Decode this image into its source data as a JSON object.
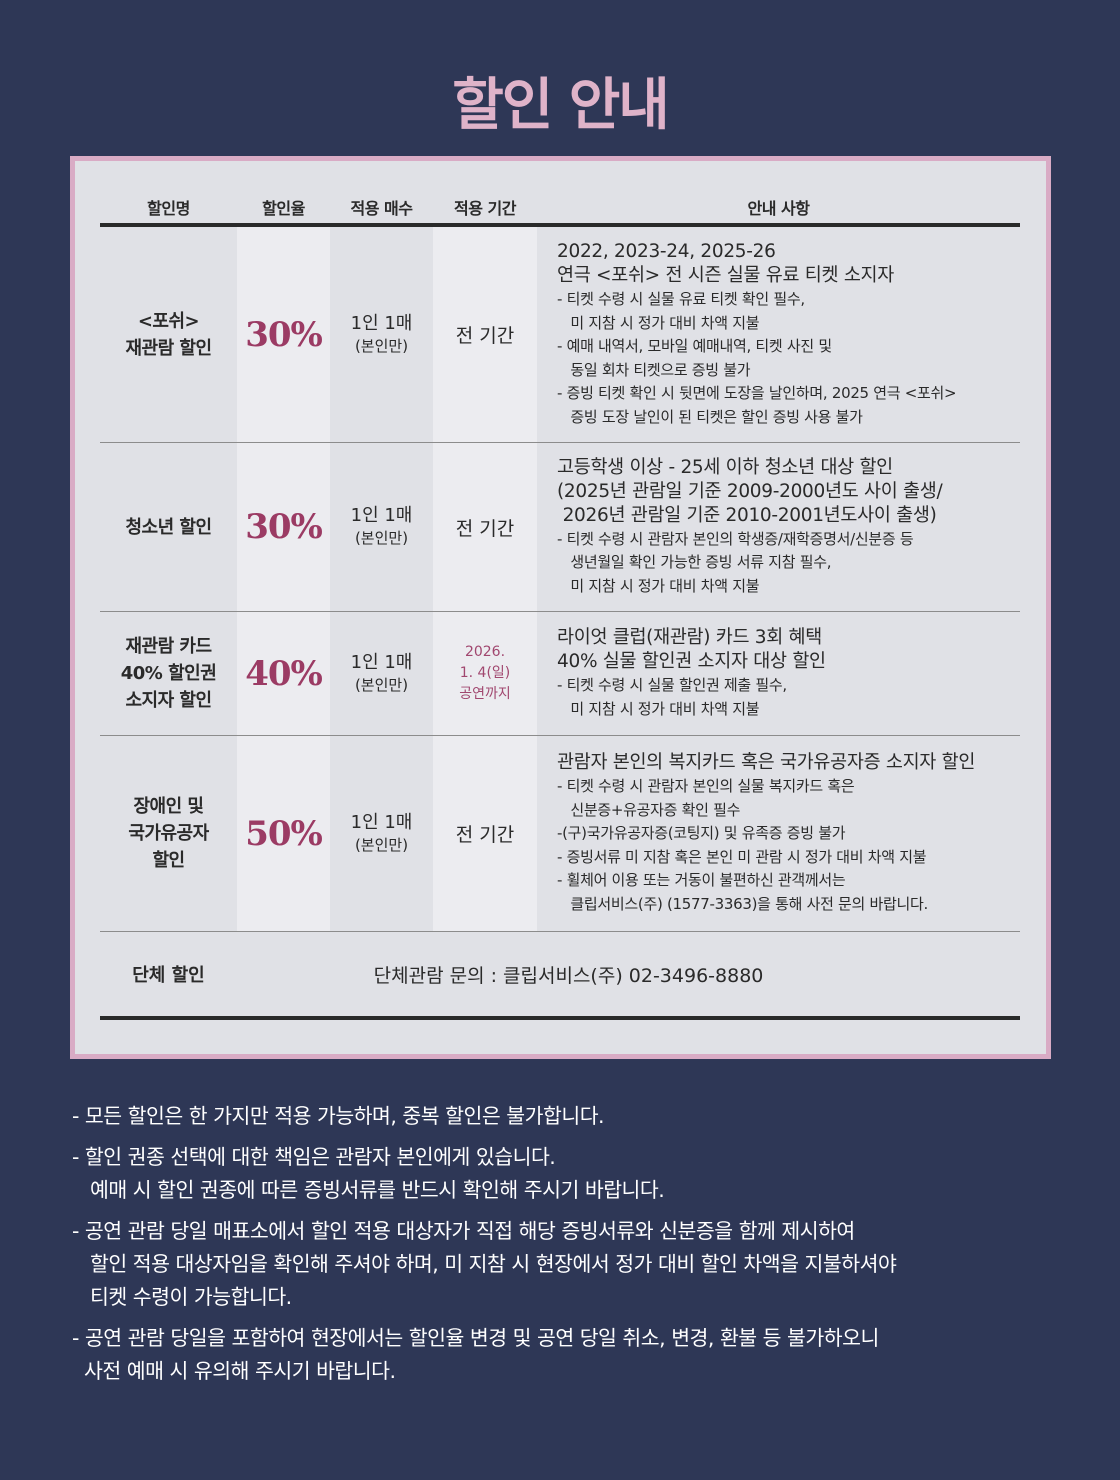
{
  "title": "할인 안내",
  "colors": {
    "background": "#2e3756",
    "accent": "#9b3b64",
    "title": "#dfb3c9",
    "border": "#d9abc5"
  },
  "headers": [
    "할인명",
    "할인율",
    "적용 매수",
    "적용 기간",
    "안내 사항"
  ],
  "rows": [
    {
      "name": "<포쉬>\n재관람 할인",
      "rate": "30%",
      "qty": "1인 1매",
      "qty_note": "(본인만)",
      "period": "전 기간",
      "info_head": "2022, 2023-24, 2025-26\n연극 <포쉬> 전 시즌 실물 유료 티켓 소지자",
      "info_body": "- 티켓 수령 시 실물 유료 티켓 확인 필수,\n   미 지참 시 정가 대비 차액 지불\n- 예매 내역서, 모바일 예매내역, 티켓 사진 및\n   동일 회차 티켓으로 증빙 불가\n- 증빙 티켓 확인 시 뒷면에 도장을 날인하며, 2025 연극 <포쉬>\n   증빙 도장 날인이 된 티켓은 할인 증빙 사용 불가"
    },
    {
      "name": "청소년 할인",
      "rate": "30%",
      "qty": "1인 1매",
      "qty_note": "(본인만)",
      "period": "전 기간",
      "info_head": "고등학생 이상 - 25세 이하 청소년 대상 할인\n(2025년 관람일 기준 2009-2000년도 사이 출생/\n 2026년 관람일 기준 2010-2001년도사이 출생)",
      "info_body": "- 티켓 수령 시 관람자 본인의 학생증/재학증명서/신분증 등\n   생년월일 확인 가능한 증빙 서류 지참 필수,\n   미 지참 시 정가 대비 차액 지불"
    },
    {
      "name": "재관람 카드\n40% 할인권\n소지자 할인",
      "rate": "40%",
      "qty": "1인 1매",
      "qty_note": "(본인만)",
      "period": "2026.\n1. 4(일)\n공연까지",
      "info_head": "라이엇 클럽(재관람) 카드 3회 혜택\n40% 실물 할인권 소지자 대상 할인",
      "info_body": "- 티켓 수령 시 실물 할인권 제출 필수,\n   미 지참 시 정가 대비 차액 지불"
    },
    {
      "name": "장애인 및\n국가유공자\n할인",
      "rate": "50%",
      "qty": "1인 1매",
      "qty_note": "(본인만)",
      "period": "전 기간",
      "info_head": "관람자 본인의 복지카드 혹은 국가유공자증 소지자 할인",
      "info_body": "- 티켓 수령 시 관람자 본인의 실물 복지카드 혹은\n   신분증+유공자증 확인 필수\n-(구)국가유공자증(코팅지) 및 유족증 증빙 불가\n- 증빙서류 미 지참 혹은 본인 미 관람 시 정가 대비 차액 지불\n- 휠체어 이용 또는 거동이 불편하신 관객께서는\n   클립서비스(주) (1577-3363)을 통해 사전 문의 바랍니다."
    }
  ],
  "group": {
    "name": "단체 할인",
    "info": "단체관람 문의 : 클립서비스(주) 02-3496-8880"
  },
  "notes": [
    "- 모든 할인은 한 가지만 적용 가능하며, 중복 할인은 불가합니다.",
    "- 할인 권종 선택에 대한 책임은 관람자 본인에게 있습니다.\n   예매 시 할인 권종에 따른 증빙서류를 반드시 확인해 주시기 바랍니다.",
    "- 공연 관람 당일 매표소에서 할인 적용 대상자가 직접 해당 증빙서류와 신분증을 함께 제시하여\n   할인 적용 대상자임을 확인해 주셔야 하며, 미 지참 시 현장에서 정가 대비 할인 차액을 지불하셔야\n   티켓 수령이 가능합니다.",
    "- 공연 관람 당일을 포함하여 현장에서는 할인율 변경 및 공연 당일 취소, 변경, 환불 등 불가하오니\n  사전 예매 시 유의해 주시기 바랍니다."
  ]
}
